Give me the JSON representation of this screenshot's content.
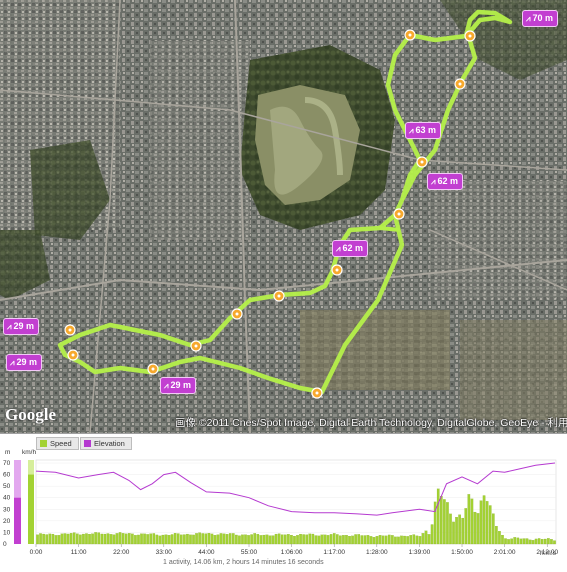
{
  "map": {
    "copyright": "画像 ©2011 Cnes/Spot Image, Digital Earth Technology, DigitalGlobe, GeoEye - 利用規約",
    "logo": "Google",
    "elevation_tags": [
      "70 m",
      "63 m",
      "62 m",
      "62 m",
      "29 m",
      "29 m",
      "29 m",
      "29 m"
    ],
    "route_color": "#b5f04a",
    "tag_color": "#c23fd1"
  },
  "chart": {
    "legend": {
      "speed": "Speed",
      "elevation": "Elevation"
    },
    "units": {
      "left": "m",
      "right": "km/h",
      "time": "h:m:s"
    },
    "elev_ticks": [
      "70",
      "60",
      "50",
      "40",
      "30",
      "20",
      "10",
      "0"
    ],
    "speed_ticks": [
      "70",
      "60",
      "50",
      "40",
      "30",
      "20",
      "10",
      "0"
    ],
    "time_ticks": [
      "0:00",
      "11:00",
      "22:00",
      "33:00",
      "44:00",
      "55:00",
      "1:06:00",
      "1:17:00",
      "1:28:00",
      "1:39:00",
      "1:50:00",
      "2:01:00",
      "2:12:00"
    ],
    "speed_color": "#a3d233",
    "elevation_color": "#b53ad0",
    "summary": "1 activity, 14.06 km, 2 hours 14 minutes 16 seconds"
  },
  "chart_data": {
    "type": "area",
    "x_unit": "h:m:s",
    "series": [
      {
        "name": "Elevation",
        "axis": "m",
        "x": [
          "0:00",
          "5:00",
          "11:00",
          "16:00",
          "20:00",
          "24:00",
          "27:00",
          "30:00",
          "33:00",
          "36:00",
          "40:00",
          "44:00",
          "50:00",
          "55:00",
          "1:00:00",
          "1:06:00",
          "1:12:00",
          "1:17:00",
          "1:23:00",
          "1:28:00",
          "1:32:00",
          "1:39:00",
          "1:43:00",
          "1:46:00",
          "1:50:00",
          "1:54:00",
          "1:58:00",
          "2:01:00",
          "2:05:00",
          "2:09:00",
          "2:14:00"
        ],
        "values": [
          63,
          62,
          57,
          60,
          62,
          55,
          47,
          52,
          60,
          62,
          53,
          45,
          44,
          40,
          33,
          28,
          27,
          27,
          26,
          25,
          27,
          30,
          28,
          52,
          58,
          52,
          63,
          62,
          65,
          68,
          70
        ]
      },
      {
        "name": "Speed",
        "axis": "km/h",
        "x": [
          "0:00",
          "11:00",
          "22:00",
          "33:00",
          "44:00",
          "55:00",
          "1:06:00",
          "1:17:00",
          "1:28:00",
          "1:39:00",
          "1:42:00",
          "1:44:00",
          "1:46:00",
          "1:48:00",
          "1:50:00",
          "1:52:00",
          "1:54:00",
          "1:56:00",
          "1:58:00",
          "2:01:00",
          "2:12:00"
        ],
        "values": [
          8,
          9,
          9,
          8,
          9,
          8,
          8,
          8,
          7,
          7,
          15,
          45,
          35,
          25,
          20,
          40,
          30,
          45,
          20,
          5,
          4
        ]
      }
    ],
    "ylim_left": [
      0,
      70
    ],
    "ylim_right": [
      0,
      70
    ]
  }
}
